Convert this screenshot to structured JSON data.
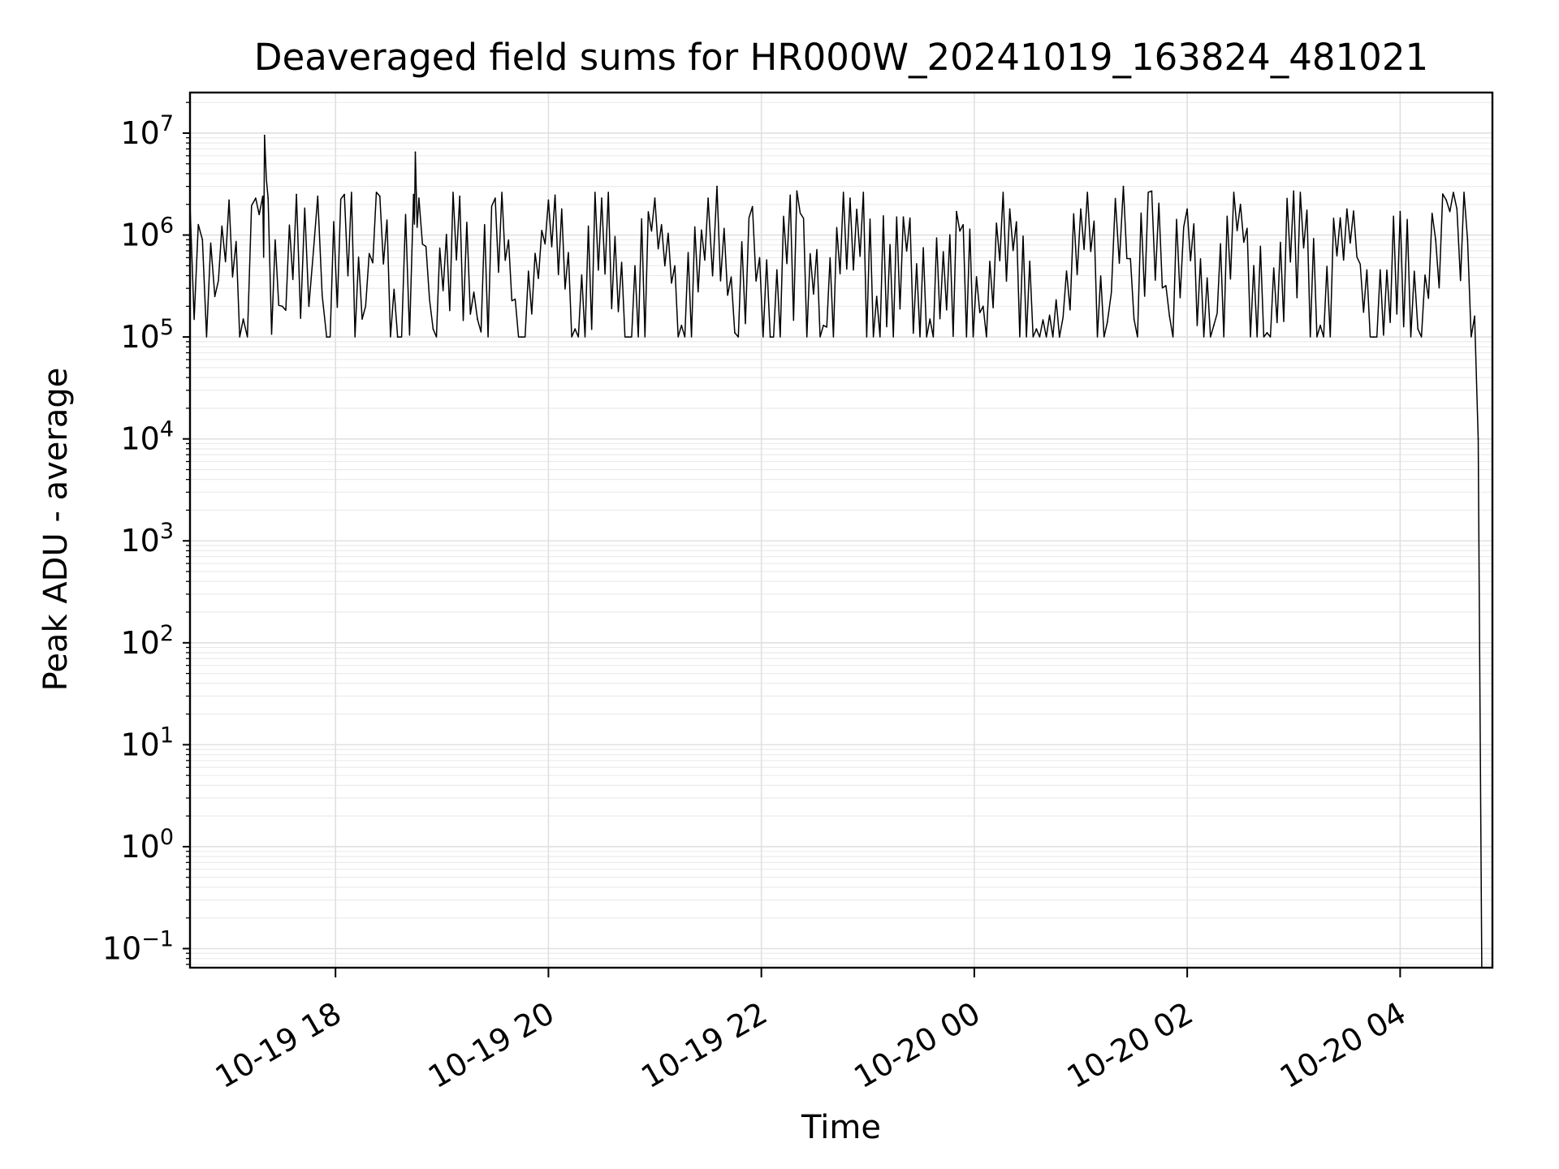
{
  "chart_data": {
    "type": "line",
    "title": "Deaveraged field sums for HR000W_20241019_163824_481021",
    "xlabel": "Time",
    "ylabel": "Peak ADU - average",
    "yscale": "log",
    "ylim": [
      0.065,
      25000000
    ],
    "xlim": [
      "2024-10-19T16:38",
      "2024-10-20T04:52"
    ],
    "grid": true,
    "colors": {
      "line": "#000000",
      "grid": "#e0e0e0"
    },
    "x_ticks": [
      {
        "value": "2024-10-19T18:00",
        "label": "10-19 18"
      },
      {
        "value": "2024-10-19T20:00",
        "label": "10-19 20"
      },
      {
        "value": "2024-10-19T22:00",
        "label": "10-19 22"
      },
      {
        "value": "2024-10-20T00:00",
        "label": "10-20 00"
      },
      {
        "value": "2024-10-20T02:00",
        "label": "10-20 02"
      },
      {
        "value": "2024-10-20T04:00",
        "label": "10-20 04"
      }
    ],
    "y_ticks": [
      {
        "value": 0.1,
        "base": "10",
        "exp": "−1"
      },
      {
        "value": 1,
        "base": "10",
        "exp": "0"
      },
      {
        "value": 10,
        "base": "10",
        "exp": "1"
      },
      {
        "value": 100,
        "base": "10",
        "exp": "2"
      },
      {
        "value": 1000,
        "base": "10",
        "exp": "3"
      },
      {
        "value": 10000,
        "base": "10",
        "exp": "4"
      },
      {
        "value": 100000,
        "base": "10",
        "exp": "5"
      },
      {
        "value": 1000000,
        "base": "10",
        "exp": "6"
      },
      {
        "value": 10000000,
        "base": "10",
        "exp": "7"
      }
    ],
    "series": [
      {
        "x": [
          "2024-10-19T16:38",
          "2024-10-19T16:45",
          "2024-10-19T16:52",
          "2024-10-19T17:00",
          "2024-10-19T17:08",
          "2024-10-19T17:15",
          "2024-10-19T17:19",
          "2024-10-19T17:20",
          "2024-10-19T17:22",
          "2024-10-19T17:30",
          "2024-10-19T17:38",
          "2024-10-19T17:45",
          "2024-10-19T17:50",
          "2024-10-19T17:55",
          "2024-10-19T18:05",
          "2024-10-19T18:15",
          "2024-10-19T18:25",
          "2024-10-19T18:35",
          "2024-10-19T18:44",
          "2024-10-19T18:45",
          "2024-10-19T18:47",
          "2024-10-19T18:55",
          "2024-10-19T19:10",
          "2024-10-19T19:20",
          "2024-10-19T19:30",
          "2024-10-19T19:45",
          "2024-10-19T20:00",
          "2024-10-19T20:15",
          "2024-10-19T20:30",
          "2024-10-19T20:45",
          "2024-10-19T21:00",
          "2024-10-19T21:15",
          "2024-10-19T21:30",
          "2024-10-19T21:35",
          "2024-10-19T21:45",
          "2024-10-19T21:55",
          "2024-10-19T22:05",
          "2024-10-19T22:20",
          "2024-10-19T22:35",
          "2024-10-19T22:50",
          "2024-10-19T23:05",
          "2024-10-19T23:20",
          "2024-10-19T23:35",
          "2024-10-19T23:50",
          "2024-10-20T00:05",
          "2024-10-20T00:20",
          "2024-10-20T00:35",
          "2024-10-20T00:48",
          "2024-10-20T01:00",
          "2024-10-20T01:15",
          "2024-10-20T01:24",
          "2024-10-20T01:30",
          "2024-10-20T01:40",
          "2024-10-20T01:50",
          "2024-10-20T02:00",
          "2024-10-20T02:15",
          "2024-10-20T02:30",
          "2024-10-20T02:45",
          "2024-10-20T03:00",
          "2024-10-20T03:15",
          "2024-10-20T03:30",
          "2024-10-20T03:45",
          "2024-10-20T04:00",
          "2024-10-20T04:10",
          "2024-10-20T04:20",
          "2024-10-20T04:26",
          "2024-10-20T04:32",
          "2024-10-20T04:38",
          "2024-10-20T04:42",
          "2024-10-20T04:44",
          "2024-10-20T04:46"
        ],
        "y": [
          2000000,
          900000,
          250000,
          2200000,
          150000,
          2300000,
          2400000,
          9500000,
          2300000,
          200000,
          2500000,
          200000,
          2400000,
          100000,
          2500000,
          150000,
          2400000,
          100000,
          2500000,
          6500000,
          2300000,
          120000,
          2400000,
          150000,
          2300000,
          100000,
          2200000,
          120000,
          2300000,
          100000,
          2300000,
          130000,
          2300000,
          3000000,
          110000,
          1900000,
          100000,
          2700000,
          130000,
          2300000,
          250000,
          1500000,
          150000,
          1700000,
          200000,
          1800000,
          120000,
          100000,
          1800000,
          140000,
          3000000,
          150000,
          2700000,
          160000,
          1800000,
          130000,
          2000000,
          110000,
          2700000,
          130000,
          1800000,
          100000,
          1700000,
          120000,
          900000,
          2200000,
          1800000,
          900000,
          160000,
          10000,
          0.05
        ]
      }
    ]
  }
}
